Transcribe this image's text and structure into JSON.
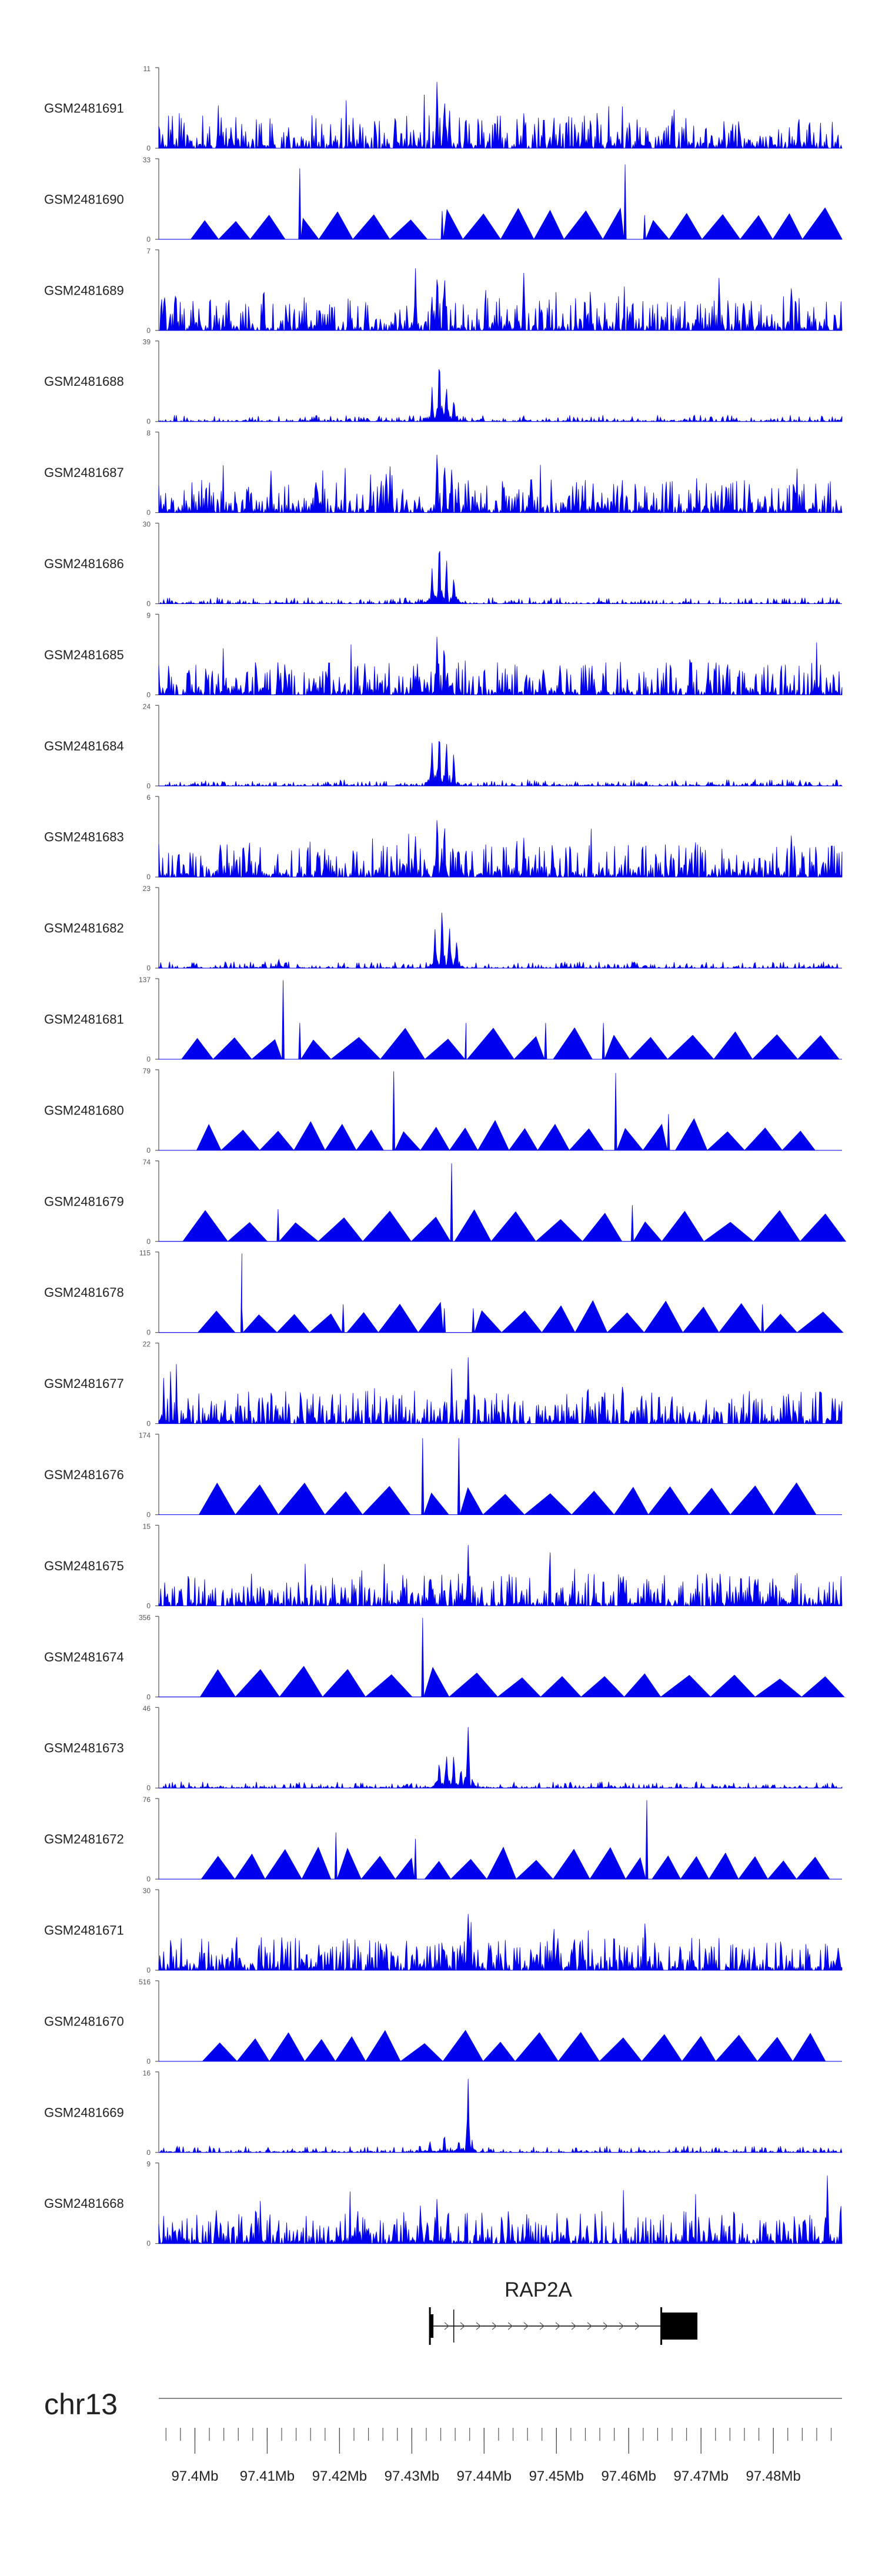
{
  "chart_data": {
    "type": "area",
    "title": "",
    "xlabel": "",
    "ylabel": "",
    "xlim": [
      97.395,
      97.4895
    ],
    "tracks": [
      {
        "name": "GSM2481691",
        "ymax": 11,
        "ymin": 0,
        "style": "dense",
        "peaks": [
          [
            97.4335,
            1.0
          ],
          [
            97.4345,
            0.8
          ],
          [
            97.4352,
            0.55
          ],
          [
            97.4455,
            0.6
          ],
          [
            97.466,
            0.55
          ],
          [
            97.4835,
            0.5
          ]
        ]
      },
      {
        "name": "GSM2481690",
        "ymax": 33,
        "ymin": 0,
        "style": "sparse",
        "peaks": [
          [
            97.4145,
            0.88
          ],
          [
            97.4595,
            0.93
          ],
          [
            97.4342,
            0.35
          ],
          [
            97.4622,
            0.3
          ]
        ]
      },
      {
        "name": "GSM2481689",
        "ymax": 7,
        "ymin": 0,
        "style": "dense",
        "peaks": [
          [
            97.4335,
            1.0
          ],
          [
            97.4345,
            0.9
          ],
          [
            97.4305,
            0.8
          ],
          [
            97.4455,
            0.85
          ],
          [
            97.4725,
            0.8
          ],
          [
            97.4095,
            0.75
          ],
          [
            97.4825,
            0.8
          ]
        ]
      },
      {
        "name": "GSM2481688",
        "ymax": 39,
        "ymin": 0,
        "style": "peak",
        "peaks": [
          [
            97.4338,
            0.92
          ],
          [
            97.4348,
            0.55
          ],
          [
            97.4358,
            0.35
          ],
          [
            97.4328,
            0.45
          ]
        ]
      },
      {
        "name": "GSM2481687",
        "ymax": 8,
        "ymin": 0,
        "style": "dense",
        "peaks": [
          [
            97.4335,
            0.95
          ],
          [
            97.4345,
            0.85
          ],
          [
            97.4355,
            0.6
          ],
          [
            97.4265,
            0.7
          ],
          [
            97.4465,
            0.75
          ],
          [
            97.4105,
            0.6
          ],
          [
            97.4735,
            0.55
          ]
        ]
      },
      {
        "name": "GSM2481686",
        "ymax": 30,
        "ymin": 0,
        "style": "peak",
        "peaks": [
          [
            97.4338,
            0.96
          ],
          [
            97.4348,
            0.62
          ],
          [
            97.4358,
            0.42
          ],
          [
            97.4328,
            0.5
          ]
        ]
      },
      {
        "name": "GSM2481685",
        "ymax": 9,
        "ymin": 0,
        "style": "dense",
        "peaks": [
          [
            97.4335,
            0.95
          ],
          [
            97.4345,
            0.7
          ],
          [
            97.4115,
            0.6
          ],
          [
            97.4685,
            0.58
          ],
          [
            97.4235,
            0.5
          ],
          [
            97.4505,
            0.52
          ]
        ]
      },
      {
        "name": "GSM2481684",
        "ymax": 24,
        "ymin": 0,
        "style": "peak",
        "peaks": [
          [
            97.4338,
            0.95
          ],
          [
            97.4348,
            0.7
          ],
          [
            97.4358,
            0.45
          ],
          [
            97.4328,
            0.58
          ]
        ]
      },
      {
        "name": "GSM2481683",
        "ymax": 6,
        "ymin": 0,
        "style": "dense",
        "peaks": [
          [
            97.4335,
            0.98
          ],
          [
            97.4345,
            0.8
          ],
          [
            97.4305,
            0.65
          ],
          [
            97.4455,
            0.6
          ],
          [
            97.4825,
            0.62
          ],
          [
            97.4075,
            0.55
          ]
        ]
      },
      {
        "name": "GSM2481682",
        "ymax": 23,
        "ymin": 0,
        "style": "peak",
        "peaks": [
          [
            97.4342,
            0.96
          ],
          [
            97.4352,
            0.72
          ],
          [
            97.4362,
            0.45
          ],
          [
            97.4332,
            0.55
          ],
          [
            97.4116,
            0.15
          ],
          [
            97.4608,
            0.1
          ]
        ]
      },
      {
        "name": "GSM2481681",
        "ymax": 137,
        "ymin": 0,
        "style": "sparse",
        "peaks": [
          [
            97.4122,
            0.98
          ],
          [
            97.4145,
            0.45
          ],
          [
            97.4375,
            0.45
          ],
          [
            97.4485,
            0.45
          ],
          [
            97.4565,
            0.45
          ]
        ]
      },
      {
        "name": "GSM2481680",
        "ymax": 79,
        "ymin": 0,
        "style": "sparse",
        "peaks": [
          [
            97.4275,
            0.98
          ],
          [
            97.4582,
            0.96
          ],
          [
            97.4655,
            0.45
          ]
        ]
      },
      {
        "name": "GSM2481679",
        "ymax": 74,
        "ymin": 0,
        "style": "sparse",
        "peaks": [
          [
            97.4355,
            0.97
          ],
          [
            97.4115,
            0.4
          ],
          [
            97.4605,
            0.45
          ]
        ]
      },
      {
        "name": "GSM2481678",
        "ymax": 115,
        "ymin": 0,
        "style": "sparse",
        "peaks": [
          [
            97.4065,
            0.98
          ],
          [
            97.4065,
            0.3
          ],
          [
            97.4205,
            0.35
          ],
          [
            97.4385,
            0.3
          ],
          [
            97.4785,
            0.35
          ],
          [
            97.4345,
            0.3
          ]
        ]
      },
      {
        "name": "GSM2481677",
        "ymax": 22,
        "ymin": 0,
        "style": "dense",
        "peaks": [
          [
            97.4378,
            0.98
          ],
          [
            97.4265,
            0.45
          ],
          [
            97.4345,
            0.4
          ],
          [
            97.4355,
            0.35
          ]
        ]
      },
      {
        "name": "GSM2481676",
        "ymax": 174,
        "ymin": 0,
        "style": "sparse",
        "peaks": [
          [
            97.4315,
            0.95
          ],
          [
            97.4365,
            0.95
          ]
        ]
      },
      {
        "name": "GSM2481675",
        "ymax": 15,
        "ymin": 0,
        "style": "dense",
        "peaks": [
          [
            97.4378,
            0.98
          ],
          [
            97.4325,
            0.45
          ],
          [
            97.4345,
            0.3
          ]
        ]
      },
      {
        "name": "GSM2481674",
        "ymax": 356,
        "ymin": 0,
        "style": "sparse",
        "peaks": [
          [
            97.4315,
            0.98
          ]
        ]
      },
      {
        "name": "GSM2481673",
        "ymax": 46,
        "ymin": 0,
        "style": "peak",
        "peaks": [
          [
            97.4378,
            0.98
          ],
          [
            97.4348,
            0.55
          ],
          [
            97.4358,
            0.48
          ],
          [
            97.4338,
            0.4
          ],
          [
            97.4368,
            0.3
          ]
        ]
      },
      {
        "name": "GSM2481672",
        "ymax": 76,
        "ymin": 0,
        "style": "sparse",
        "peaks": [
          [
            97.4195,
            0.58
          ],
          [
            97.4625,
            0.98
          ],
          [
            97.4305,
            0.5
          ]
        ]
      },
      {
        "name": "GSM2481671",
        "ymax": 30,
        "ymin": 0,
        "style": "dense",
        "peaks": [
          [
            97.4378,
            0.98
          ],
          [
            97.4265,
            0.4
          ],
          [
            97.4345,
            0.4
          ],
          [
            97.4465,
            0.38
          ],
          [
            97.4325,
            0.35
          ]
        ]
      },
      {
        "name": "GSM2481670",
        "ymax": 516,
        "ymin": 0,
        "style": "sparse",
        "peaks": []
      },
      {
        "name": "GSM2481669",
        "ymax": 16,
        "ymin": 0,
        "style": "peak",
        "peaks": [
          [
            97.4378,
            0.98
          ],
          [
            97.4345,
            0.25
          ],
          [
            97.4325,
            0.18
          ],
          [
            97.4365,
            0.2
          ]
        ]
      },
      {
        "name": "GSM2481668",
        "ymax": 9,
        "ymin": 0,
        "style": "dense",
        "peaks": [
          [
            97.4875,
            0.96
          ],
          [
            97.4335,
            0.62
          ],
          [
            97.4225,
            0.5
          ],
          [
            97.4515,
            0.5
          ]
        ]
      }
    ],
    "gene": {
      "name": "RAP2A",
      "start": 97.4325,
      "end": 97.4695,
      "cds_start": 97.4645
    },
    "chromosome": "chr13",
    "x_ticks": [
      {
        "value": 97.4,
        "label": "97.4Mb"
      },
      {
        "value": 97.41,
        "label": "97.41Mb"
      },
      {
        "value": 97.42,
        "label": "97.42Mb"
      },
      {
        "value": 97.43,
        "label": "97.43Mb"
      },
      {
        "value": 97.44,
        "label": "97.44Mb"
      },
      {
        "value": 97.45,
        "label": "97.45Mb"
      },
      {
        "value": 97.46,
        "label": "97.46Mb"
      },
      {
        "value": 97.47,
        "label": "97.47Mb"
      },
      {
        "value": 97.48,
        "label": "97.48Mb"
      }
    ],
    "colors": {
      "signal": "#0000ee",
      "gene": "#000000",
      "axis": "#555555",
      "text": "#222222"
    }
  }
}
